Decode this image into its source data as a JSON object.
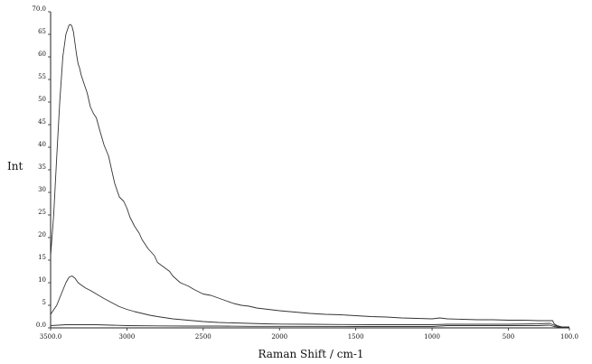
{
  "chart_data": {
    "type": "line",
    "title": "",
    "xlabel": "Raman Shift / cm-1",
    "ylabel": "Int",
    "xlim": [
      3500,
      100
    ],
    "ylim": [
      0,
      70
    ],
    "x_reversed": true,
    "grid": false,
    "legend": "none",
    "x_ticks": [
      3500,
      3000,
      2500,
      2000,
      1500,
      1000,
      500,
      100
    ],
    "x_tick_labels": [
      "3500.0",
      "3000",
      "2500",
      "2000",
      "1500",
      "1000",
      "500",
      "100.0"
    ],
    "y_ticks": [
      0,
      5,
      10,
      15,
      20,
      25,
      30,
      35,
      40,
      45,
      50,
      55,
      60,
      65,
      70
    ],
    "y_tick_labels": [
      "0.0",
      "5",
      "10",
      "15",
      "20",
      "25",
      "30",
      "35",
      "40",
      "45",
      "50",
      "55",
      "60",
      "65",
      "70.0"
    ],
    "line_color": "#333333",
    "series": [
      {
        "x": [
          3500,
          3480,
          3460,
          3440,
          3420,
          3400,
          3380,
          3370,
          3360,
          3350,
          3340,
          3330,
          3320,
          3310,
          3300,
          3280,
          3260,
          3240,
          3220,
          3200,
          3180,
          3150,
          3120,
          3100,
          3080,
          3050,
          3020,
          3000,
          2980,
          2950,
          2920,
          2900,
          2860,
          2820,
          2800,
          2760,
          2720,
          2700,
          2650,
          2600,
          2560,
          2500,
          2450,
          2400,
          2350,
          2300,
          2250,
          2200,
          2150,
          2100,
          2050,
          2000,
          1900,
          1800,
          1700,
          1600,
          1500,
          1400,
          1300,
          1200,
          1100,
          1000,
          950,
          900,
          800,
          700,
          600,
          500,
          400,
          300,
          250,
          230,
          210,
          200,
          180,
          160,
          150,
          130,
          100
        ],
        "y": [
          16,
          25,
          38,
          50,
          60,
          65,
          67,
          67.2,
          66.8,
          65.5,
          63,
          60.5,
          58.5,
          57.5,
          56,
          54,
          52,
          49,
          47.5,
          46.5,
          44,
          40.5,
          38,
          35,
          32,
          29,
          28,
          26.5,
          24.5,
          22.5,
          21,
          19.5,
          17.5,
          16,
          14.5,
          13.5,
          12.5,
          11.5,
          10,
          9.3,
          8.5,
          7.5,
          7.2,
          6.6,
          6,
          5.4,
          5,
          4.8,
          4.4,
          4.2,
          4,
          3.8,
          3.5,
          3.2,
          3,
          2.9,
          2.7,
          2.5,
          2.4,
          2.2,
          2.1,
          2,
          2.2,
          2,
          1.9,
          1.8,
          1.8,
          1.7,
          1.7,
          1.6,
          1.6,
          1.6,
          1.6,
          0.9,
          0.5,
          0.3,
          0.2,
          0.2,
          0.2
        ]
      },
      {
        "x": [
          3500,
          3460,
          3430,
          3400,
          3380,
          3360,
          3340,
          3320,
          3300,
          3270,
          3240,
          3200,
          3150,
          3100,
          3050,
          3000,
          2950,
          2900,
          2850,
          2800,
          2700,
          2600,
          2500,
          2400,
          2300,
          2200,
          2100,
          2000,
          1800,
          1600,
          1400,
          1200,
          1000,
          900,
          700,
          500,
          300,
          230,
          200,
          150,
          100
        ],
        "y": [
          3,
          5,
          7.5,
          10,
          11.2,
          11.5,
          11,
          10,
          9.5,
          8.8,
          8.3,
          7.5,
          6.5,
          5.6,
          4.7,
          4.1,
          3.6,
          3.2,
          2.8,
          2.5,
          2,
          1.7,
          1.4,
          1.2,
          1.1,
          1,
          0.9,
          0.85,
          0.8,
          0.75,
          0.7,
          0.7,
          0.7,
          0.8,
          0.8,
          0.8,
          0.9,
          1,
          0.6,
          0.2,
          0.1
        ]
      },
      {
        "x": [
          3500,
          3400,
          3300,
          3200,
          3100,
          3000,
          2800,
          2600,
          2400,
          2200,
          2000,
          1500,
          1000,
          900,
          500,
          300,
          230,
          200,
          150,
          100
        ],
        "y": [
          0.5,
          0.7,
          0.7,
          0.7,
          0.6,
          0.5,
          0.45,
          0.4,
          0.4,
          0.35,
          0.35,
          0.3,
          0.3,
          0.5,
          0.5,
          0.5,
          0.6,
          0.3,
          0.1,
          0.05
        ]
      }
    ]
  }
}
